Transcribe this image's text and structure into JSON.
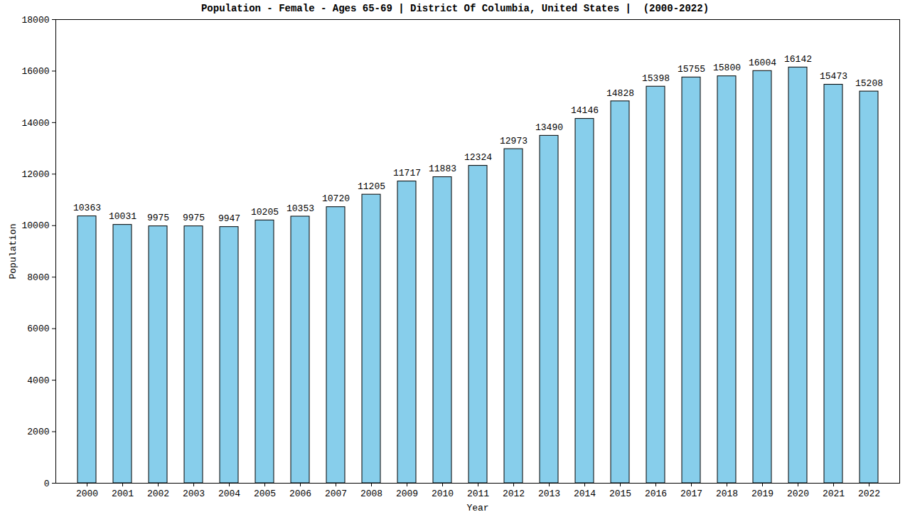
{
  "chart_data": {
    "type": "bar",
    "title": "Population - Female - Ages 65-69 | District Of Columbia, United States |  (2000-2022)",
    "x_label": "Year",
    "y_label": "Population",
    "categories": [
      "2000",
      "2001",
      "2002",
      "2003",
      "2004",
      "2005",
      "2006",
      "2007",
      "2008",
      "2009",
      "2010",
      "2011",
      "2012",
      "2013",
      "2014",
      "2015",
      "2016",
      "2017",
      "2018",
      "2019",
      "2020",
      "2021",
      "2022"
    ],
    "values": [
      10363,
      10031,
      9975,
      9975,
      9947,
      10205,
      10353,
      10720,
      11205,
      11717,
      11883,
      12324,
      12973,
      13490,
      14146,
      14828,
      15398,
      15755,
      15800,
      16004,
      16142,
      15473,
      15208
    ],
    "color": "#87ceeb",
    "ylim": [
      0,
      18000
    ],
    "yticks": [
      0,
      2000,
      4000,
      6000,
      8000,
      10000,
      12000,
      14000,
      16000,
      18000
    ],
    "grid": false,
    "data_labels": true
  }
}
